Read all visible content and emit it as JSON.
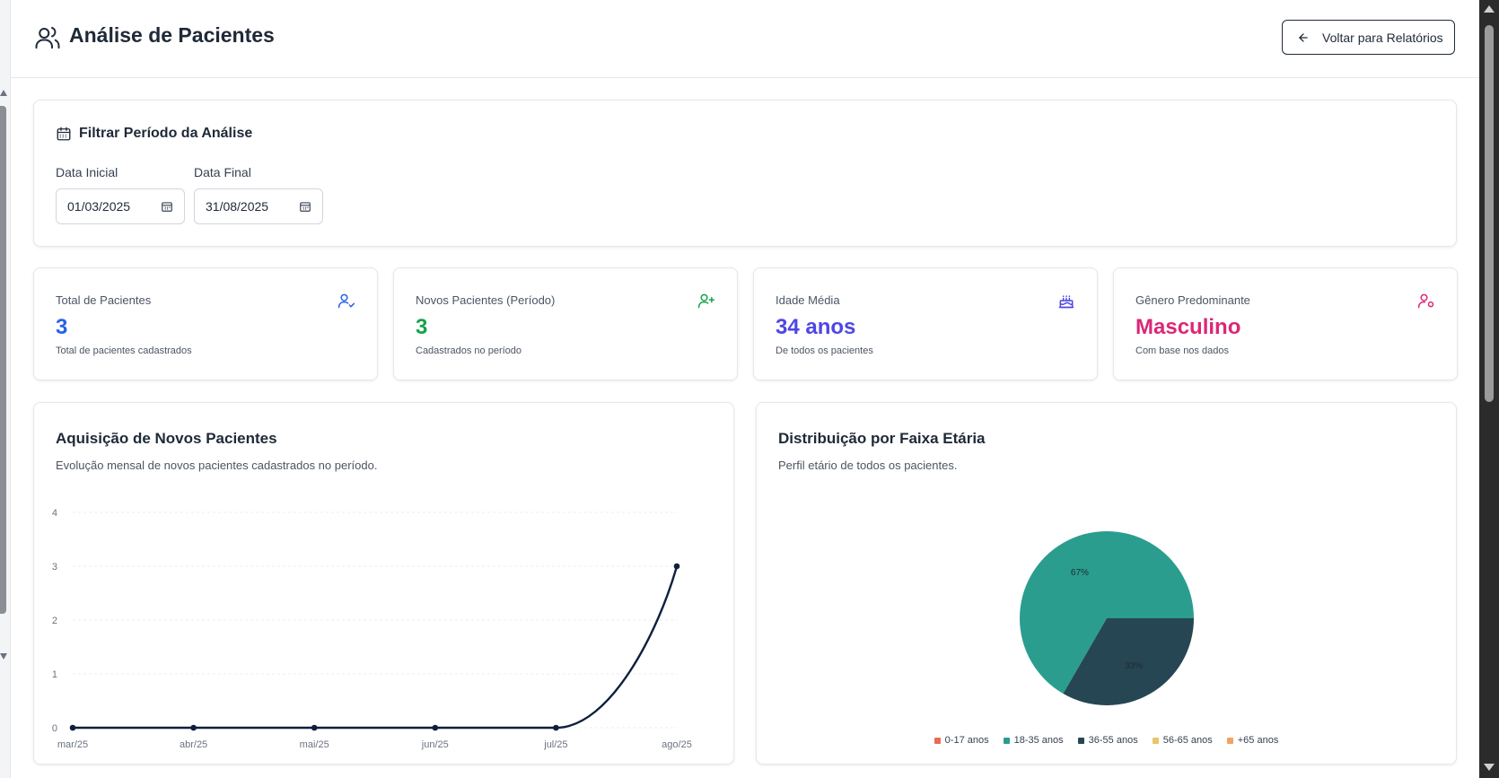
{
  "header": {
    "title": "Análise de Pacientes",
    "back_label": "Voltar para Relatórios"
  },
  "filter": {
    "title": "Filtrar Período da Análise",
    "start_label": "Data Inicial",
    "start_value": "01/03/2025",
    "end_label": "Data Final",
    "end_value": "31/08/2025"
  },
  "stats": [
    {
      "label": "Total de Pacientes",
      "value": "3",
      "sub": "Total de pacientes cadastrados",
      "color": "#2563eb",
      "icon": "user-check-icon"
    },
    {
      "label": "Novos Pacientes (Período)",
      "value": "3",
      "sub": "Cadastrados no período",
      "color": "#16a34a",
      "icon": "user-plus-icon"
    },
    {
      "label": "Idade Média",
      "value": "34 anos",
      "sub": "De todos os pacientes",
      "color": "#4f46e5",
      "icon": "cake-icon"
    },
    {
      "label": "Gênero Predominante",
      "value": "Masculino",
      "sub": "Com base nos dados",
      "color": "#db2777",
      "icon": "user-cog-icon"
    }
  ],
  "acquisition": {
    "title": "Aquisição de Novos Pacientes",
    "subtitle": "Evolução mensal de novos pacientes cadastrados no período."
  },
  "age_distribution": {
    "title": "Distribuição por Faixa Etária",
    "subtitle": "Perfil etário de todos os pacientes."
  },
  "colors": {
    "line": "#0f1f3d",
    "text_dark": "#1f2937"
  },
  "chart_data": [
    {
      "type": "line",
      "x": [
        "mar/25",
        "abr/25",
        "mai/25",
        "jun/25",
        "jul/25",
        "ago/25"
      ],
      "series": [
        {
          "values": [
            0,
            0,
            0,
            0,
            0,
            3
          ],
          "color": "#0f1f3d"
        }
      ],
      "ylim": [
        0,
        4
      ],
      "yticks": [
        0,
        1,
        2,
        3,
        4
      ],
      "grid": true
    },
    {
      "type": "pie",
      "categories": [
        "0-17 anos",
        "18-35 anos",
        "36-55 anos",
        "56-65 anos",
        "+65 anos"
      ],
      "values": [
        0,
        2,
        1,
        0,
        0
      ],
      "labels": [
        "",
        "67%",
        "33%",
        "",
        ""
      ],
      "colors": [
        "#e76e50",
        "#2a9d8f",
        "#264653",
        "#e9c46a",
        "#f4a261"
      ],
      "legend": "bottom"
    }
  ]
}
